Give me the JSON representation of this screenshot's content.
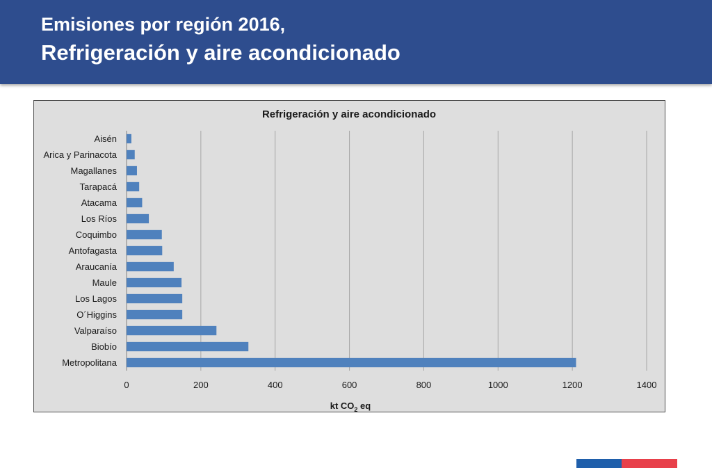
{
  "header": {
    "line1": "Emisiones por región 2016,",
    "line2": "Refrigeración y aire acondicionado",
    "background_color": "#2e4d8e",
    "text_color": "#ffffff"
  },
  "chart_data": {
    "type": "bar",
    "orientation": "horizontal",
    "title": "Refrigeración y aire acondicionado",
    "categories": [
      "Aisén",
      "Arica y Parinacota",
      "Magallanes",
      "Tarapacá",
      "Atacama",
      "Los Ríos",
      "Coquimbo",
      "Antofagasta",
      "Araucanía",
      "Maule",
      "Los Lagos",
      "O´Higgins",
      "Valparaíso",
      "Biobío",
      "Metropolitana"
    ],
    "values": [
      13,
      22,
      28,
      34,
      42,
      60,
      95,
      96,
      127,
      148,
      150,
      150,
      242,
      328,
      1210
    ],
    "xlabel_main": "kt CO",
    "xlabel_sub": "2",
    "xlabel_tail": " eq",
    "ylabel": "",
    "xlim": [
      0,
      1400
    ],
    "xticks": [
      0,
      200,
      400,
      600,
      800,
      1000,
      1200,
      1400
    ],
    "grid": "vertical",
    "legend": "none",
    "colors": {
      "bar": "#4f81bd",
      "plot_background": "#dedede",
      "chart_background": "#dedede",
      "gridline": "#a6a6a6",
      "text": "#1a1a1a"
    }
  },
  "footer": {
    "flag_colors": [
      "#1f5fab",
      "#e8404a"
    ]
  }
}
